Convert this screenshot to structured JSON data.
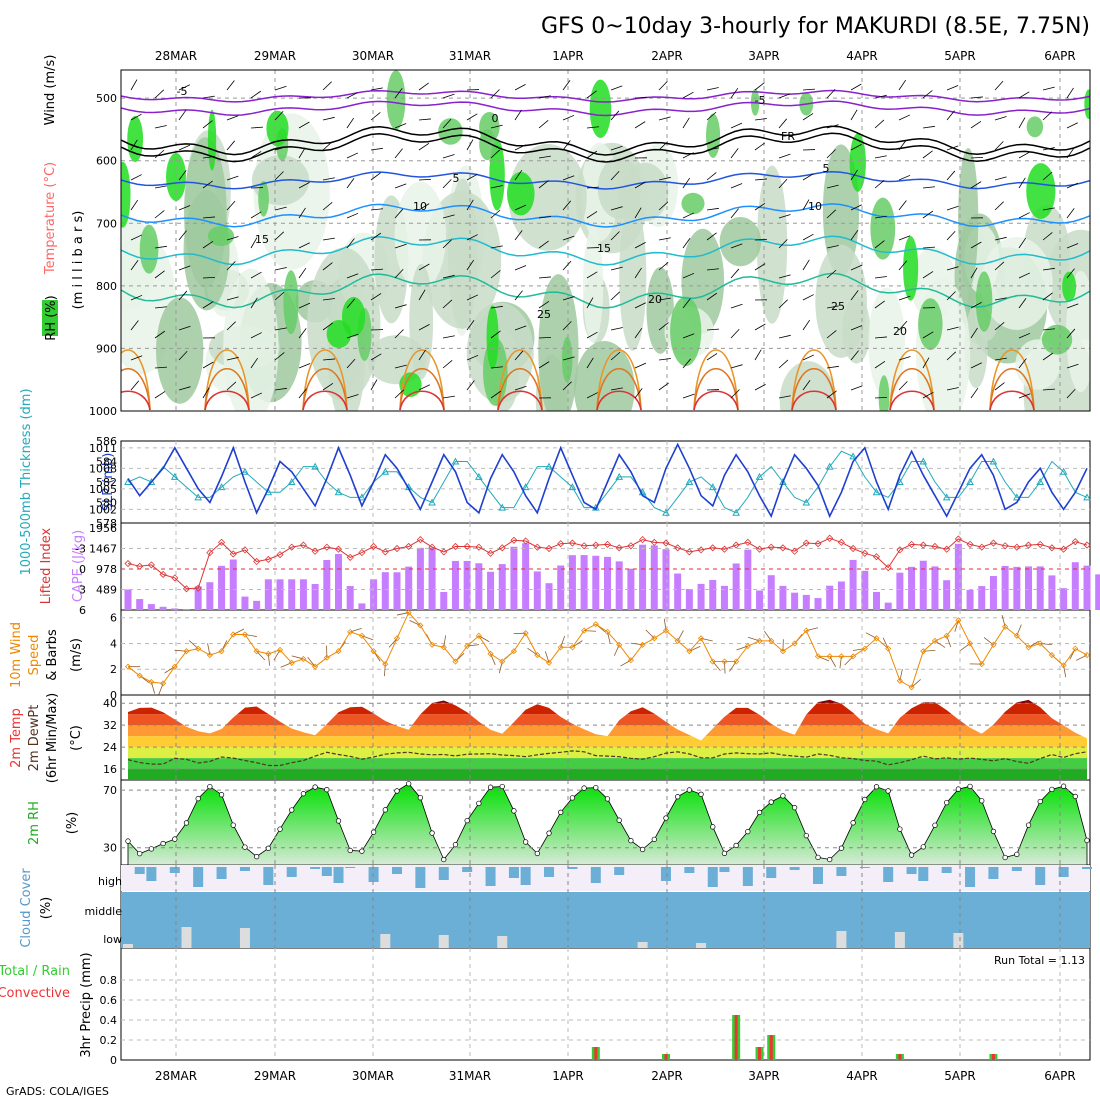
{
  "title": "GFS 0~10day 3-hourly for MAKURDI (8.5E, 7.75N)",
  "credit": "GrADS: COLA/IGES",
  "colors": {
    "rh": "#33cc33",
    "temperature": "#ff3333",
    "wind": "#000000",
    "slp": "#1f3fcf",
    "thickness": "#22aabb",
    "cape": "#c77dff",
    "lifted_index": "#dd3333",
    "wind10": "#ee8800",
    "rh2m": "#22dd22",
    "cloud": "#6baed6",
    "precip_total": "#33cc33",
    "precip_conv": "#ee3333"
  },
  "chart_data": [
    {
      "type": "heatmap",
      "name": "upper-air",
      "title": "RH (%) / Temperature (°C) / Wind (m/s)",
      "ylabel": "millibars",
      "yticks": [
        "500",
        "600",
        "700",
        "800",
        "900",
        "1000"
      ],
      "ylim": [
        455,
        1000
      ],
      "dates": [
        "28MAR",
        "29MAR",
        "30MAR",
        "31MAR",
        "1APR",
        "2APR",
        "3APR",
        "4APR",
        "5APR",
        "6APR"
      ],
      "contour_labels": [
        "-5",
        "-5",
        "0",
        "FR",
        "5",
        "5",
        "10",
        "10",
        "15",
        "15",
        "20",
        "20",
        "25",
        "25"
      ]
    },
    {
      "type": "line",
      "name": "slp-thickness",
      "series": [
        {
          "name": "SLP (mb)",
          "values": [
            1006.5,
            1004,
            1006,
            1008,
            1011,
            1008,
            1005,
            1003,
            1006.8,
            1011,
            1006,
            1001.5,
            1005,
            1009,
            1007.5,
            1005,
            1002.5,
            1006.5,
            1011,
            1007,
            1002.5,
            1006,
            1010,
            1008,
            1005,
            1002,
            1006,
            1010,
            1007.5,
            1003,
            1001.5,
            1006.5,
            1010,
            1007.5,
            1004,
            1001.5,
            1006.5,
            1011,
            1007,
            1003,
            1002,
            1006,
            1010,
            1007.5,
            1004,
            1003,
            1008,
            1011.5,
            1008,
            1004,
            1002.5,
            1007,
            1010,
            1007.5,
            1004,
            1001,
            1006,
            1010,
            1008,
            1005.5,
            1001,
            1004.5,
            1009,
            1011,
            1006,
            1002,
            1007,
            1010.5,
            1007,
            1004,
            1001,
            1004.5,
            1008,
            1010,
            1007,
            1002,
            1003,
            1006,
            1008,
            1004.5,
            1002,
            1004.5,
            1008
          ]
        },
        {
          "name": "1000-500mb Thickness (dm)",
          "values": [
            582,
            582.5,
            582,
            583.5,
            582.5,
            581.5,
            580.5,
            580.5,
            581.5,
            582.5,
            583,
            582,
            581,
            581,
            582,
            583.5,
            583.5,
            582,
            581,
            580.5,
            580.5,
            582,
            583,
            583,
            581.5,
            580.5,
            580,
            582,
            584,
            584,
            582.5,
            581,
            579.5,
            579.5,
            581.5,
            583.5,
            583.5,
            582.5,
            581.5,
            579.5,
            579.5,
            581,
            582.5,
            582.5,
            581,
            579.5,
            579,
            580.5,
            582,
            582.5,
            581.5,
            579.5,
            579,
            580.5,
            582.5,
            583.5,
            582,
            580.5,
            580,
            581.5,
            583.5,
            585,
            584.5,
            582.5,
            581,
            580.5,
            582,
            584,
            584,
            582,
            580.5,
            580.5,
            582,
            584,
            584,
            582,
            580.5,
            580.5,
            582,
            584,
            583,
            581,
            580.5
          ]
        }
      ],
      "yticks_left": [
        "578",
        "580",
        "582",
        "584",
        "586"
      ],
      "yticks_right": [
        "1002",
        "1005",
        "1008",
        "1011"
      ]
    },
    {
      "type": "bar",
      "name": "cape-lifted-index",
      "series": [
        {
          "name": "CAPE (J/kg)",
          "values": [
            488,
            261,
            141,
            76,
            38,
            22,
            563,
            663,
            1053,
            1204,
            320,
            218,
            732,
            732,
            732,
            732,
            620,
            1192,
            1335,
            571,
            157,
            732,
            902,
            900,
            1035,
            1483,
            1490,
            430,
            1170,
            1170,
            1115,
            912,
            1095,
            1508,
            1592,
            920,
            640,
            1061,
            1308,
            1310,
            1294,
            1268,
            1160,
            985,
            1558,
            1540,
            1450,
            870,
            500,
            623,
            715,
            575,
            1110,
            1440,
            465,
            830,
            575,
            413,
            360,
            285,
            580,
            680,
            1195,
            935,
            430,
            175,
            890,
            1030,
            1175,
            1040,
            710,
            1580,
            480,
            570,
            810,
            1050,
            1030,
            1040,
            1040,
            825,
            520,
            1140,
            1058,
            850
          ]
        },
        {
          "name": "Lifted Index",
          "values": [
            -0.8,
            -0.4,
            -0.6,
            0.8,
            1.3,
            2.9,
            2.8,
            -2.4,
            -3.9,
            -2.2,
            -2.8,
            -1.1,
            -1.4,
            -2.1,
            -3.2,
            -3.5,
            -2.6,
            -3.2,
            -2.9,
            -1.7,
            -2.4,
            -3.3,
            -2.5,
            -3,
            -3.3,
            -4.3,
            -3.2,
            -2.5,
            -3.3,
            -3.3,
            -3.2,
            -2.3,
            -3.1,
            -4.2,
            -4.1,
            -3.2,
            -3,
            -3.7,
            -3.8,
            -3.4,
            -3.5,
            -3.6,
            -3.1,
            -3.4,
            -4.3,
            -3.9,
            -3.8,
            -3.1,
            -2.5,
            -2.8,
            -3.1,
            -2.9,
            -3.5,
            -3.9,
            -2.9,
            -3.2,
            -3.1,
            -2.6,
            -3.8,
            -3.7,
            -4.5,
            -3.9,
            -3,
            -2.3,
            -1.8,
            -0.2,
            -2.8,
            -3.6,
            -3.5,
            -3.3,
            -2.9,
            -4.4,
            -3.6,
            -3.2,
            -3.8,
            -3.4,
            -3.2,
            -3.5,
            -3.6,
            -3.1,
            -2.9,
            -4,
            -3.5
          ]
        }
      ],
      "yticks_left": [
        "-3",
        "0",
        "3",
        "6"
      ],
      "yticks_right": [
        "489",
        "978",
        "1467",
        "1956"
      ]
    },
    {
      "type": "line",
      "name": "wind-10m",
      "ylabel": "(m/s)",
      "series": [
        {
          "name": "10m Wind Speed",
          "values": [
            2.2,
            1.5,
            1,
            0.9,
            2.2,
            3.4,
            3.6,
            3.1,
            3.4,
            4.7,
            4.7,
            3.4,
            3.2,
            3.5,
            2.5,
            2.8,
            2.2,
            2.9,
            3.4,
            4.9,
            4.6,
            3.4,
            2.4,
            4.4,
            6.4,
            5.4,
            3.9,
            3.7,
            2.6,
            3.8,
            4.6,
            3.2,
            2.6,
            3.4,
            4.8,
            3.1,
            2.5,
            3.7,
            3.7,
            5,
            5.5,
            4.9,
            3.9,
            2.7,
            3.9,
            4.4,
            5,
            4.2,
            3.4,
            4.4,
            2.6,
            2.6,
            2.6,
            3.8,
            4.2,
            4.2,
            3.4,
            4,
            5,
            3,
            3,
            3,
            3,
            3.6,
            4.4,
            3.6,
            1.1,
            0.6,
            3.4,
            4.2,
            4.6,
            5.8,
            4,
            2.4,
            3.9,
            5.3,
            4.6,
            3.7,
            4,
            3.1,
            2.3,
            3.6,
            3.1
          ]
        }
      ],
      "yticks": [
        "0",
        "2",
        "4",
        "6"
      ]
    },
    {
      "type": "area",
      "name": "temp-2m",
      "ylabel": "(°C)",
      "series": [
        {
          "name": "2m Temp",
          "values": [
            36.8,
            38.3,
            38.4,
            36.7,
            34.1,
            31.4,
            29.8,
            29,
            30.6,
            34.8,
            38.4,
            38.8,
            36.1,
            33.3,
            30.8,
            29.4,
            28.3,
            32.4,
            36.7,
            38.5,
            38.7,
            36.3,
            33.5,
            31.7,
            30.3,
            36,
            40.1,
            41,
            39.2,
            36.7,
            33.3,
            30.3,
            28.9,
            33.1,
            37.6,
            39.6,
            38.3,
            35,
            32.5,
            30.5,
            28.7,
            28,
            33.8,
            37.1,
            38.5,
            36.2,
            33.2,
            30.4,
            28.4,
            26.4,
            30.8,
            35.1,
            38.3,
            38.3,
            35.8,
            32.5,
            30,
            28.5,
            35.9,
            40.4,
            41.3,
            39.8,
            36.5,
            32.5,
            30.5,
            29,
            34.7,
            38.2,
            40.3,
            40.3,
            37.5,
            34.1,
            31.1,
            28.9,
            32.2,
            36.9,
            40.3,
            41.2,
            38.5,
            34.5,
            31.9,
            29.2,
            27.2
          ]
        },
        {
          "name": "2m DewPt",
          "values": [
            19.4,
            18.4,
            17.8,
            17.8,
            19.9,
            19.5,
            18.2,
            18.8,
            20.4,
            20,
            19.1,
            18.3,
            17.3,
            17.3,
            18.3,
            19.1,
            20.7,
            22.1,
            21.3,
            20.6,
            19.6,
            20.4,
            21.4,
            21.9,
            22.1,
            21.5,
            21.2,
            21.3,
            20.8,
            21.4,
            21.5,
            21.6,
            21.1,
            20.9,
            20.5,
            21.2,
            21.7,
            22.1,
            22.6,
            22.3,
            20.9,
            20.7,
            20.5,
            19.9,
            19.6,
            20.5,
            21.8,
            22.3,
            21.5,
            20.1,
            20.1,
            21.5,
            21.9,
            21.6,
            21.5,
            21.9,
            21.1,
            20.7,
            20.3,
            21.5,
            21,
            20.1,
            19.8,
            19.1,
            18.9,
            17.5,
            18.3,
            19.4,
            20.7,
            19.7,
            20.1,
            19.6,
            20,
            19.5,
            19,
            19.8,
            18.7,
            18.1,
            19.8,
            21.3,
            20.2,
            21.6,
            22.3
          ]
        }
      ],
      "yticks": [
        "16",
        "24",
        "32",
        "40"
      ]
    },
    {
      "type": "area",
      "name": "rh-2m",
      "ylabel": "(%)",
      "series": [
        {
          "name": "2m RH",
          "values": [
            34.6,
            25.9,
            29.2,
            32.9,
            36,
            47.2,
            64.1,
            72.4,
            66.8,
            45.7,
            30.4,
            23.8,
            29.6,
            42.9,
            56.2,
            67.5,
            72.1,
            70.3,
            48.6,
            28.1,
            27.6,
            40.8,
            56.3,
            69.4,
            74.4,
            64.7,
            40.2,
            21.8,
            32.1,
            48.8,
            60.8,
            72,
            72.5,
            55.6,
            34,
            26,
            40.1,
            54.6,
            64.6,
            71.4,
            71.7,
            63.9,
            49.1,
            34.9,
            28.8,
            35.8,
            50.6,
            65.4,
            70.1,
            67.1,
            44.5,
            26.1,
            31.6,
            41.2,
            54.5,
            61.7,
            66,
            57.8,
            38.4,
            23.3,
            21.8,
            29.7,
            47.3,
            63.5,
            72.3,
            69.4,
            42.9,
            24.9,
            30.6,
            45.6,
            61.3,
            70.7,
            72.6,
            62.6,
            41.3,
            23.2,
            25.4,
            45.7,
            62.1,
            70.5,
            72.7,
            65.6,
            35.1
          ]
        }
      ],
      "yticks": [
        "30",
        "70"
      ]
    },
    {
      "type": "area",
      "name": "cloud-cover",
      "ylabel": "(%)",
      "levels": [
        "high",
        "middle",
        "low"
      ]
    },
    {
      "type": "bar",
      "name": "precip-3hr",
      "ylabel": "3hr Precip (mm)",
      "run_total_label": "Run Total = 1.13",
      "ylim": [
        0,
        1
      ],
      "yticks": [
        "0",
        "0.2",
        "0.4",
        "0.6",
        "0.8"
      ],
      "series": [
        {
          "name": "Total / Rain",
          "values": [
            0,
            0,
            0,
            0,
            0,
            0,
            0,
            0,
            0,
            0,
            0,
            0,
            0,
            0,
            0,
            0,
            0,
            0,
            0,
            0,
            0,
            0,
            0,
            0,
            0,
            0,
            0,
            0,
            0,
            0,
            0,
            0,
            0,
            0,
            0,
            0,
            0,
            0,
            0,
            0,
            0.13,
            0,
            0,
            0,
            0,
            0,
            0.06,
            0,
            0,
            0,
            0,
            0,
            0.45,
            0,
            0.13,
            0.25,
            0,
            0,
            0,
            0,
            0,
            0,
            0,
            0,
            0,
            0,
            0.06,
            0,
            0,
            0,
            0,
            0,
            0,
            0,
            0.06,
            0,
            0,
            0,
            0,
            0,
            0,
            0,
            0
          ]
        },
        {
          "name": "Convective",
          "values": [
            0,
            0,
            0,
            0,
            0,
            0,
            0,
            0,
            0,
            0,
            0,
            0,
            0,
            0,
            0,
            0,
            0,
            0,
            0,
            0,
            0,
            0,
            0,
            0,
            0,
            0,
            0,
            0,
            0,
            0,
            0,
            0,
            0,
            0,
            0,
            0,
            0,
            0,
            0,
            0,
            0.13,
            0,
            0,
            0,
            0,
            0,
            0.06,
            0,
            0,
            0,
            0,
            0,
            0.45,
            0,
            0.13,
            0.25,
            0,
            0,
            0,
            0,
            0,
            0,
            0,
            0,
            0,
            0,
            0.06,
            0,
            0,
            0,
            0,
            0,
            0,
            0,
            0.06,
            0,
            0,
            0,
            0,
            0,
            0,
            0,
            0
          ]
        }
      ]
    }
  ],
  "side_labels": {
    "rh": "RH (%)",
    "temperature": "Temperature (°C)",
    "wind": "Wind (m/s)",
    "millibars": "(m i l l i b a r s)",
    "thickness": "1000-500mb Thickness (dm)",
    "slp": "SLP (mb)",
    "lifted_index": "Lifted Index",
    "cape": "CAPE (J/kg)",
    "wind10_a": "10m Wind",
    "wind10_b": "Speed",
    "wind10_c": "& Barbs",
    "wind10_unit": "(m/s)",
    "temp_a": "2m Temp",
    "temp_b": "2m DewPt",
    "temp_c": "(6hr Min/Max)",
    "temp_unit": "(°C)",
    "rh2m": "2m RH",
    "rh2m_unit": "(%)",
    "cloud": "Cloud Cover",
    "cloud_unit": "(%)",
    "precip_total": "Total / Rain",
    "precip_conv": "Convective",
    "precip_axis": "3hr Precip (mm)"
  }
}
